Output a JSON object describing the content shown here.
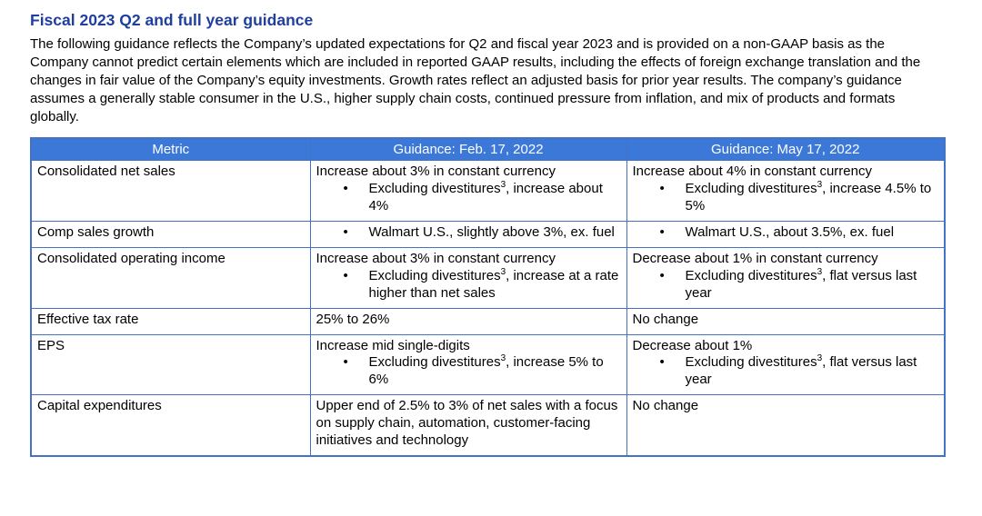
{
  "title": "Fiscal 2023 Q2 and full year guidance",
  "intro": "The following guidance reflects the Company’s updated expectations for Q2 and fiscal year 2023 and is provided on a non-GAAP basis as the Company cannot predict certain elements which are included in reported GAAP results, including the effects of foreign exchange translation and the changes in fair value of the Company’s equity investments. Growth rates reflect an adjusted basis for prior year results. The company’s guidance assumes a generally stable consumer in the U.S., higher supply chain costs, continued pressure from inflation, and mix of products and formats globally.",
  "table": {
    "headers": [
      "Metric",
      "Guidance: Feb. 17, 2022",
      "Guidance: May 17, 2022"
    ],
    "rows": [
      {
        "metric": "Consolidated net sales",
        "feb": {
          "lead": "Increase about 3% in constant currency",
          "bullets": [
            {
              "pre": "Excluding divestitures",
              "sup": "3",
              "post": ", increase about 4%"
            }
          ]
        },
        "may": {
          "lead": "Increase about 4% in constant currency",
          "bullets": [
            {
              "pre": "Excluding divestitures",
              "sup": "3",
              "post": ", increase 4.5% to 5%"
            }
          ]
        }
      },
      {
        "metric": "Comp sales growth",
        "feb": {
          "lead": null,
          "bullets": [
            {
              "pre": "Walmart U.S., slightly above 3%, ex. fuel",
              "sup": null,
              "post": null
            }
          ]
        },
        "may": {
          "lead": null,
          "bullets": [
            {
              "pre": "Walmart U.S., about 3.5%, ex. fuel",
              "sup": null,
              "post": null
            }
          ]
        }
      },
      {
        "metric": "Consolidated operating income",
        "feb": {
          "lead": "Increase about 3% in constant currency",
          "bullets": [
            {
              "pre": "Excluding divestitures",
              "sup": "3",
              "post": ", increase at a rate higher than net sales"
            }
          ]
        },
        "may": {
          "lead": "Decrease about 1%  in constant currency",
          "bullets": [
            {
              "pre": "Excluding divestitures",
              "sup": "3",
              "post": ", flat versus last year"
            }
          ]
        }
      },
      {
        "metric": "Effective tax rate",
        "feb": {
          "lead": "25% to 26%",
          "bullets": []
        },
        "may": {
          "lead": "No change",
          "bullets": []
        }
      },
      {
        "metric": "EPS",
        "feb": {
          "lead": "Increase mid single-digits",
          "bullets": [
            {
              "pre": "Excluding divestitures",
              "sup": "3",
              "post": ", increase 5% to 6%"
            }
          ]
        },
        "may": {
          "lead": "Decrease about 1%",
          "bullets": [
            {
              "pre": "Excluding divestitures",
              "sup": "3",
              "post": ", flat versus last year"
            }
          ]
        }
      },
      {
        "metric": "Capital expenditures",
        "feb": {
          "lead": "Upper end of 2.5% to 3% of net sales with a focus on supply chain, automation, customer-facing initiatives and technology",
          "bullets": []
        },
        "may": {
          "lead": "No change",
          "bullets": []
        }
      }
    ]
  },
  "colors": {
    "title_blue": "#1f3f9e",
    "header_bg": "#3c78d8",
    "header_text": "#ffffff",
    "table_border": "#4472c4",
    "body_text": "#000000"
  }
}
